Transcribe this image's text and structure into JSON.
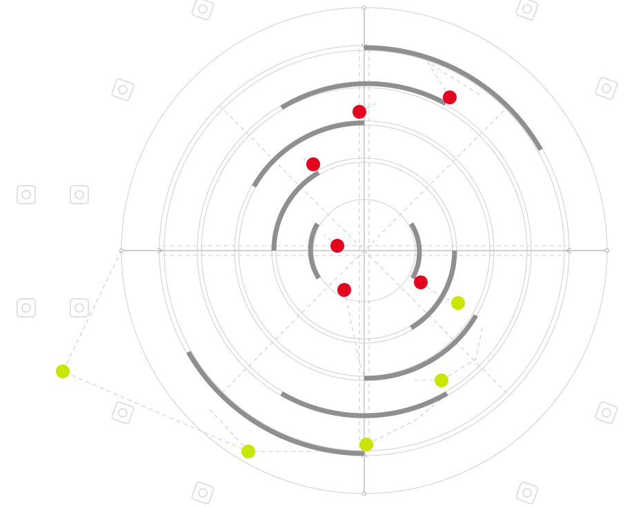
{
  "diagram": {
    "type": "concentric-circle-puzzle",
    "arc_color": "#8f8f8f",
    "guide_color": "#d6d6d6",
    "dashed_color": "#cfcfcf",
    "ring_count": 6,
    "red_markers": 6,
    "yellow_markers": 5,
    "colors": {
      "red": "#e6001e",
      "yellow": "#c8e600",
      "corner_icon": "#e0e0e0"
    },
    "icons": {
      "corner": "rounded-square-outline-icon",
      "red": "red-dot-icon",
      "yellow": "yellow-dot-icon"
    }
  }
}
